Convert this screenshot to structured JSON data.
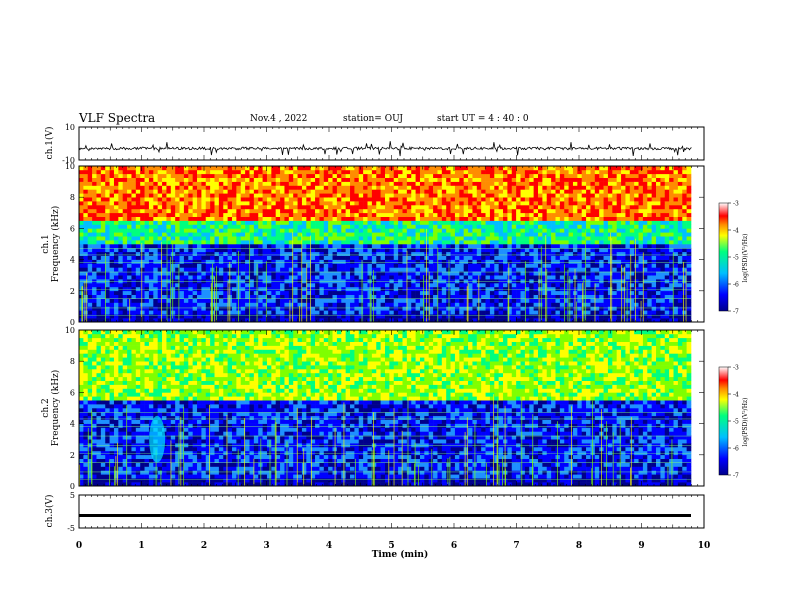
{
  "header": {
    "title": "VLF Spectra",
    "date": "Nov.4  , 2022",
    "station": "station= OUJ",
    "start": "start  UT  =   4 : 40 : 0"
  },
  "chart_data": [
    {
      "type": "line",
      "panel": "ch1-waveform",
      "ylabel": "ch.1(V)",
      "ylim": [
        -10,
        10
      ],
      "yticks": [
        "10",
        "-10"
      ],
      "x_range_min": [
        0,
        9.8
      ],
      "baseline_value": -3
    },
    {
      "type": "heatmap",
      "panel": "ch1-spectrogram",
      "ylabel": "ch.1\nFrequency (kHz)",
      "ylim": [
        0,
        10
      ],
      "yticks": [
        "0",
        "2",
        "4",
        "6",
        "8",
        "10"
      ],
      "colorbar": {
        "label": "log(PSD)(V²/Hz)",
        "range": [
          -7,
          -3
        ],
        "ticks": [
          "-3",
          "-4",
          "-5",
          "-6",
          "-7"
        ]
      },
      "bands_khz": [
        {
          "from": 0,
          "to": 5,
          "level": -6.3
        },
        {
          "from": 5,
          "to": 6.5,
          "level": -5
        },
        {
          "from": 6.5,
          "to": 10,
          "level": -3.6
        }
      ]
    },
    {
      "type": "heatmap",
      "panel": "ch2-spectrogram",
      "ylabel": "ch.2\nFrequency (kHz)",
      "ylim": [
        0,
        10
      ],
      "yticks": [
        "0",
        "2",
        "4",
        "6",
        "8",
        "10"
      ],
      "colorbar": {
        "label": "log(PSD)(V²/Hz)",
        "range": [
          -7,
          -3
        ],
        "ticks": [
          "-3",
          "-4",
          "-5",
          "-6",
          "-7"
        ]
      },
      "bands_khz": [
        {
          "from": 0,
          "to": 5.5,
          "level": -6.3
        },
        {
          "from": 5.5,
          "to": 10,
          "level": -4.5
        }
      ]
    },
    {
      "type": "line",
      "panel": "ch3-waveform",
      "ylabel": "ch.3(V)",
      "ylim": [
        -5,
        5
      ],
      "yticks": [
        "5",
        "-5"
      ],
      "baseline_value": -1.2
    }
  ],
  "xaxis": {
    "label": "Time  (min)",
    "range": [
      0,
      10
    ],
    "ticks": [
      "0",
      "1",
      "2",
      "3",
      "4",
      "5",
      "6",
      "7",
      "8",
      "9",
      "10"
    ]
  },
  "colors": {
    "colormap": [
      "#00008b",
      "#0000ff",
      "#00bfff",
      "#00ff7f",
      "#ffff00",
      "#ff8c00",
      "#ff0000",
      "#ffffff"
    ]
  }
}
